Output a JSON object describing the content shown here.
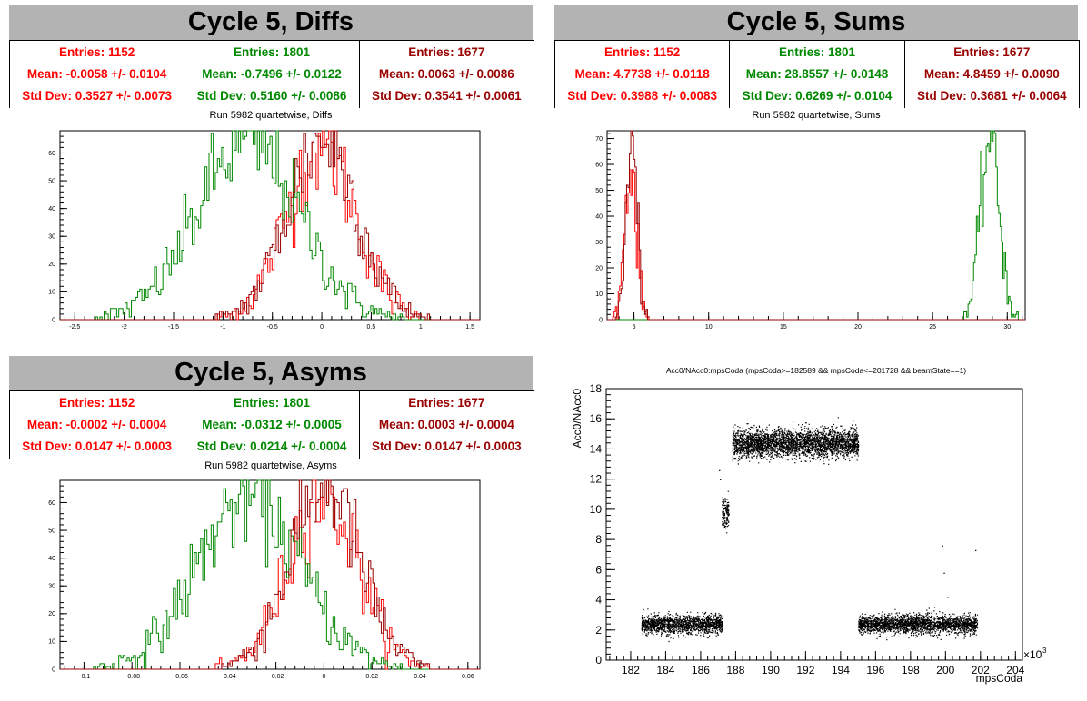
{
  "colors": {
    "red": "#ff0000",
    "green": "#008800",
    "darkred": "#990000"
  },
  "panels": {
    "diffs": {
      "title": "Cycle 5, Diffs",
      "subtitle": "Run 5982 quartetwise, Diffs",
      "stats": [
        {
          "entries": "Entries: 1152",
          "mean": "Mean: -0.0058 +/- 0.0104",
          "std": "Std Dev: 0.3527 +/- 0.0073",
          "color": "#ff0000"
        },
        {
          "entries": "Entries: 1801",
          "mean": "Mean: -0.7496 +/- 0.0122",
          "std": "Std Dev: 0.5160 +/- 0.0086",
          "color": "#008800"
        },
        {
          "entries": "Entries: 1677",
          "mean": "Mean: 0.0063 +/- 0.0086",
          "std": "Std Dev: 0.3541 +/- 0.0061",
          "color": "#990000"
        }
      ]
    },
    "sums": {
      "title": "Cycle 5, Sums",
      "subtitle": "Run 5982 quartetwise, Sums",
      "stats": [
        {
          "entries": "Entries: 1152",
          "mean": "Mean: 4.7738 +/- 0.0118",
          "std": "Std Dev: 0.3988 +/- 0.0083",
          "color": "#ff0000"
        },
        {
          "entries": "Entries: 1801",
          "mean": "Mean: 28.8557 +/- 0.0148",
          "std": "Std Dev: 0.6269 +/- 0.0104",
          "color": "#008800"
        },
        {
          "entries": "Entries: 1677",
          "mean": "Mean: 4.8459 +/- 0.0090",
          "std": "Std Dev: 0.3681 +/- 0.0064",
          "color": "#990000"
        }
      ]
    },
    "asyms": {
      "title": "Cycle 5, Asyms",
      "subtitle": "Run 5982 quartetwise, Asyms",
      "stats": [
        {
          "entries": "Entries: 1152",
          "mean": "Mean: -0.0002 +/- 0.0004",
          "std": "Std Dev: 0.0147 +/- 0.0003",
          "color": "#ff0000"
        },
        {
          "entries": "Entries: 1801",
          "mean": "Mean: -0.0312 +/- 0.0005",
          "std": "Std Dev: 0.0214 +/- 0.0004",
          "color": "#008800"
        },
        {
          "entries": "Entries: 1677",
          "mean": "Mean: 0.0003 +/- 0.0004",
          "std": "Std Dev: 0.0147 +/- 0.0003",
          "color": "#990000"
        }
      ]
    },
    "scatter": {
      "subtitle": "Acc0/NAcc0:mpsCoda (mpsCoda>=182589 && mpsCoda<=201728 && beamState==1)"
    }
  },
  "chart_data": [
    {
      "id": "diffs",
      "type": "area",
      "xlim": [
        -2.65,
        1.6
      ],
      "ylim": [
        0,
        68
      ],
      "xticks": [
        -2.5,
        -2,
        -1.5,
        -1,
        -0.5,
        0,
        0.5,
        1,
        1.5
      ],
      "xtick_labels": [
        "-2.5",
        "-2",
        "-1.5",
        "-1",
        "-0.5",
        "0",
        "0.5",
        "1",
        "1.5"
      ],
      "yticks": [
        0,
        10,
        20,
        30,
        40,
        50,
        60
      ],
      "series": [
        {
          "color": "#ff0000",
          "mean": -0.006,
          "sd": 0.353,
          "peak": 62
        },
        {
          "color": "#008800",
          "mean": -0.75,
          "sd": 0.516,
          "peak": 64
        },
        {
          "color": "#990000",
          "mean": 0.006,
          "sd": 0.354,
          "peak": 65
        }
      ]
    },
    {
      "id": "sums",
      "type": "area",
      "xlim": [
        3.2,
        31.2
      ],
      "ylim": [
        0,
        73
      ],
      "xticks": [
        5,
        10,
        15,
        20,
        25,
        30
      ],
      "xtick_labels": [
        "5",
        "10",
        "15",
        "20",
        "25",
        "30"
      ],
      "yticks": [
        0,
        10,
        20,
        30,
        40,
        50,
        60,
        70
      ],
      "series": [
        {
          "color": "#ff0000",
          "mean": 4.77,
          "sd": 0.399,
          "peak": 60
        },
        {
          "color": "#008800",
          "mean": 28.86,
          "sd": 0.627,
          "peak": 71
        },
        {
          "color": "#990000",
          "mean": 4.85,
          "sd": 0.368,
          "peak": 68
        }
      ]
    },
    {
      "id": "asyms",
      "type": "area",
      "xlim": [
        -0.11,
        0.065
      ],
      "ylim": [
        0,
        68
      ],
      "xticks": [
        -0.1,
        -0.08,
        -0.06,
        -0.04,
        -0.02,
        0,
        0.02,
        0.04,
        0.06
      ],
      "xtick_labels": [
        "−0.1",
        "−0.08",
        "−0.06",
        "−0.04",
        "−0.02",
        "0",
        "0.02",
        "0.04",
        "0.06"
      ],
      "yticks": [
        0,
        10,
        20,
        30,
        40,
        50,
        60
      ],
      "series": [
        {
          "color": "#ff0000",
          "mean": -0.0002,
          "sd": 0.0147,
          "peak": 62
        },
        {
          "color": "#008800",
          "mean": -0.0312,
          "sd": 0.0214,
          "peak": 62
        },
        {
          "color": "#990000",
          "mean": 0.0003,
          "sd": 0.0147,
          "peak": 66
        }
      ]
    },
    {
      "id": "scatter",
      "type": "scatter",
      "xlabel": "mpsCoda",
      "ylabel": "Acc0/NAcc0",
      "x_multiplier_label": "×10",
      "x_multiplier_exp": "3",
      "xlim": [
        180.6,
        204.4
      ],
      "ylim": [
        0,
        18
      ],
      "xticks": [
        182,
        184,
        186,
        188,
        190,
        192,
        194,
        196,
        198,
        200,
        202,
        204
      ],
      "xtick_labels": [
        "182",
        "184",
        "186",
        "188",
        "190",
        "192",
        "194",
        "196",
        "198",
        "200",
        "202",
        "204"
      ],
      "yticks": [
        0,
        2,
        4,
        6,
        8,
        10,
        12,
        14,
        16,
        18
      ],
      "ytick_labels": [
        "0",
        "2",
        "4",
        "6",
        "8",
        "10",
        "12",
        "14",
        "16",
        "18"
      ],
      "clusters": [
        {
          "x_range": [
            182.6,
            187.2
          ],
          "y_mean": 2.4,
          "y_sd": 0.3,
          "density": 1600
        },
        {
          "x_range": [
            187.2,
            187.6
          ],
          "y_mean": 9.8,
          "y_sd": 0.5,
          "density": 150
        },
        {
          "x_range": [
            187.8,
            195.0
          ],
          "y_mean": 14.4,
          "y_sd": 0.45,
          "density": 3200
        },
        {
          "x_range": [
            195.0,
            201.8
          ],
          "y_mean": 2.4,
          "y_sd": 0.3,
          "density": 2400
        }
      ]
    }
  ]
}
